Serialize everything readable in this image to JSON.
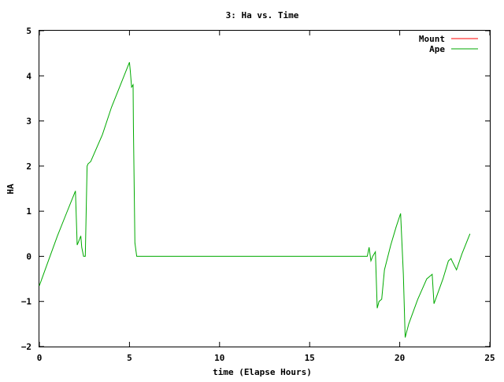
{
  "chart_data": {
    "type": "line",
    "title": "3: Ha vs. Time",
    "xlabel": "time (Elapse Hours)",
    "ylabel": "HA",
    "xlim": [
      0,
      25
    ],
    "ylim": [
      -2,
      5
    ],
    "x_ticks": [
      0,
      5,
      10,
      15,
      20,
      25
    ],
    "y_ticks": [
      -2,
      -1,
      0,
      1,
      2,
      3,
      4,
      5
    ],
    "grid": false,
    "legend_position": "top-right",
    "series": [
      {
        "name": "Mount",
        "color": "#ff0000",
        "x": [],
        "y": []
      },
      {
        "name": "Ape",
        "color": "#00aa00",
        "x": [
          0,
          0.5,
          1.0,
          1.5,
          2.0,
          2.1,
          2.15,
          2.3,
          2.35,
          2.45,
          2.55,
          2.65,
          2.7,
          2.85,
          3.5,
          4.0,
          4.5,
          5.0,
          5.05,
          5.12,
          5.2,
          5.22,
          5.3,
          5.4,
          5.5,
          10,
          15,
          18.2,
          18.3,
          18.4,
          18.5,
          18.65,
          18.75,
          18.85,
          19.0,
          19.15,
          19.5,
          19.8,
          20.05,
          20.2,
          20.3,
          20.5,
          21.0,
          21.5,
          21.8,
          21.9,
          22.4,
          22.7,
          22.85,
          22.9,
          23.15,
          23.45,
          23.9
        ],
        "y": [
          -0.65,
          -0.1,
          0.45,
          0.95,
          1.45,
          0.25,
          0.3,
          0.45,
          0.2,
          0.0,
          0.0,
          2.0,
          2.05,
          2.1,
          2.7,
          3.3,
          3.8,
          4.3,
          4.1,
          3.75,
          3.8,
          2.9,
          0.3,
          0.0,
          0.0,
          0.0,
          0.0,
          0.0,
          0.2,
          -0.1,
          0.0,
          0.1,
          -1.15,
          -1.0,
          -0.95,
          -0.3,
          0.25,
          0.65,
          0.95,
          -0.4,
          -1.8,
          -1.5,
          -0.95,
          -0.5,
          -0.4,
          -1.05,
          -0.5,
          -0.1,
          -0.05,
          -0.1,
          -0.3,
          0.05,
          0.5
        ]
      }
    ]
  }
}
